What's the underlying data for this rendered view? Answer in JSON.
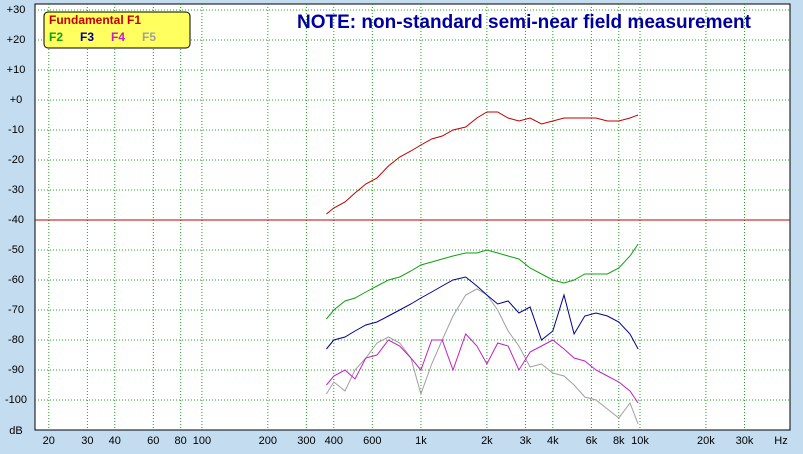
{
  "chart_data": {
    "type": "line",
    "title": "NOTE: non-standard semi-near field measurement",
    "x_label": "Hz",
    "y_label": "dB",
    "log_x": true,
    "grid": true,
    "legend": "top-left",
    "xlim": [
      17.3,
      48400
    ],
    "ylim": [
      -110,
      32
    ],
    "xticks": [
      20,
      30,
      40,
      60,
      80,
      100,
      200,
      300,
      400,
      600,
      {
        "value": 1000,
        "label": "1k"
      },
      {
        "value": 2000,
        "label": "2k"
      },
      {
        "value": 3000,
        "label": "3k"
      },
      {
        "value": 4000,
        "label": "4k"
      },
      {
        "value": 6000,
        "label": "6k"
      },
      {
        "value": 8000,
        "label": "8k"
      },
      {
        "value": 10000,
        "label": "10k"
      },
      {
        "value": 20000,
        "label": "20k"
      },
      {
        "value": 30000,
        "label": "30k"
      }
    ],
    "yticks": [
      {
        "value": 30,
        "label": "+30"
      },
      {
        "value": 20,
        "label": "+20"
      },
      {
        "value": 10,
        "label": "+10"
      },
      {
        "value": 0,
        "label": "+0"
      },
      -10,
      -20,
      -30,
      -40,
      -50,
      -60,
      -70,
      -80,
      -90,
      -100
    ],
    "reference_line": {
      "value": -40,
      "color": "#c00000"
    },
    "x": [
      370,
      400,
      450,
      500,
      560,
      630,
      710,
      800,
      900,
      1000,
      1120,
      1250,
      1400,
      1600,
      1800,
      2000,
      2240,
      2500,
      2800,
      3150,
      3550,
      4000,
      4500,
      5000,
      5600,
      6300,
      7100,
      8000,
      9000,
      9800
    ],
    "series": [
      {
        "name": "Fundamental F1",
        "color": "#c00000",
        "values": [
          -38,
          -36,
          -34,
          -31,
          -28,
          -26,
          -22,
          -19,
          -17,
          -15,
          -13,
          -12,
          -10,
          -9,
          -6,
          -4,
          -4,
          -6,
          -7,
          -6,
          -8,
          -7,
          -6,
          -6,
          -6,
          -6,
          -7,
          -7,
          -6,
          -5
        ]
      },
      {
        "name": "F2",
        "color": "#10a010",
        "values": [
          -73,
          -70,
          -67,
          -66,
          -64,
          -62,
          -60,
          -59,
          -57,
          -55,
          -54,
          -53,
          -52,
          -51,
          -51,
          -50,
          -51,
          -52,
          -53,
          -56,
          -58,
          -60,
          -61,
          -60,
          -58,
          -58,
          -58,
          -56,
          -52,
          -48
        ]
      },
      {
        "name": "F3",
        "color": "#000090",
        "values": [
          -83,
          -80,
          -79,
          -77,
          -75,
          -74,
          -72,
          -70,
          -68,
          -66,
          -64,
          -62,
          -60,
          -59,
          -62,
          -65,
          -68,
          -67,
          -71,
          -69,
          -80,
          -77,
          -65,
          -78,
          -72,
          -71,
          -72,
          -74,
          -78,
          -83
        ]
      },
      {
        "name": "F4",
        "color": "#c020c0",
        "values": [
          -95,
          -92,
          -90,
          -93,
          -86,
          -85,
          -80,
          -82,
          -86,
          -90,
          -80,
          -80,
          -90,
          -78,
          -82,
          -88,
          -81,
          -82,
          -90,
          -84,
          -82,
          -80,
          -83,
          -86,
          -87,
          -90,
          -92,
          -94,
          -97,
          -101
        ]
      },
      {
        "name": "F5",
        "color": "#a0a0a0",
        "values": [
          -98,
          -94,
          -97,
          -90,
          -86,
          -81,
          -79,
          -81,
          -86,
          -98,
          -88,
          -80,
          -72,
          -65,
          -63,
          -65,
          -70,
          -77,
          -82,
          -89,
          -88,
          -91,
          -92,
          -95,
          -99,
          -100,
          -103,
          -106,
          -101,
          -108
        ]
      }
    ]
  }
}
